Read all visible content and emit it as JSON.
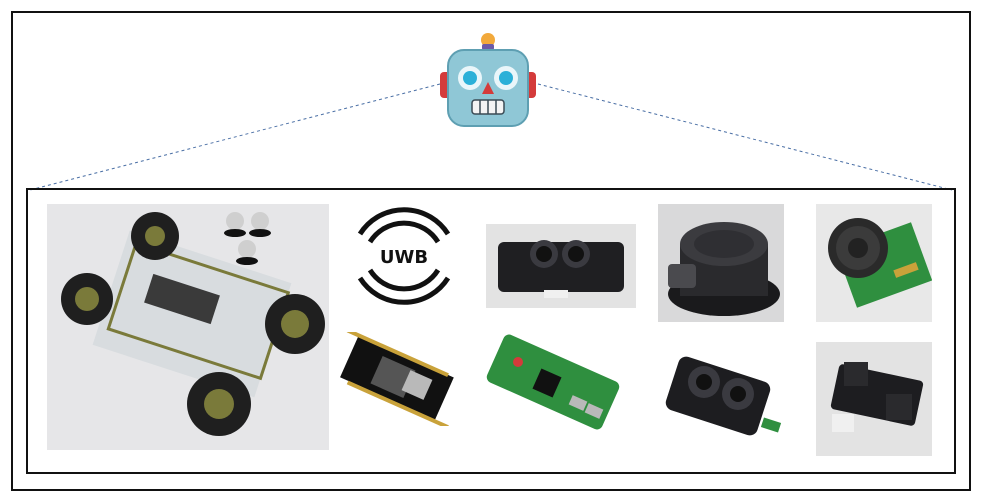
{
  "diagram": {
    "uwb_label": "UWB"
  },
  "components": [
    {
      "name": "rc-car-chassis-photo",
      "icon": "rc-car"
    },
    {
      "name": "uwb-logo",
      "icon": "uwb"
    },
    {
      "name": "tof-distance-sensor-photo",
      "icon": "sensor"
    },
    {
      "name": "lidar-unit-photo",
      "icon": "lidar"
    },
    {
      "name": "ultrasonic-sensor-photo",
      "icon": "ultrasonic"
    },
    {
      "name": "esp32-board-photo",
      "icon": "board"
    },
    {
      "name": "raspberry-pi-zero-photo",
      "icon": "board"
    },
    {
      "name": "tof-sensor-module-photo",
      "icon": "sensor"
    },
    {
      "name": "ir-distance-sensor-photo",
      "icon": "sensor"
    }
  ],
  "colors": {
    "border": "#111111",
    "dashed_line": "#4a6fa5",
    "robot_head": "#8fc7d6",
    "robot_ear": "#d43b3b",
    "robot_antenna": "#f2a93b",
    "pcb_green": "#2f8f3f"
  }
}
